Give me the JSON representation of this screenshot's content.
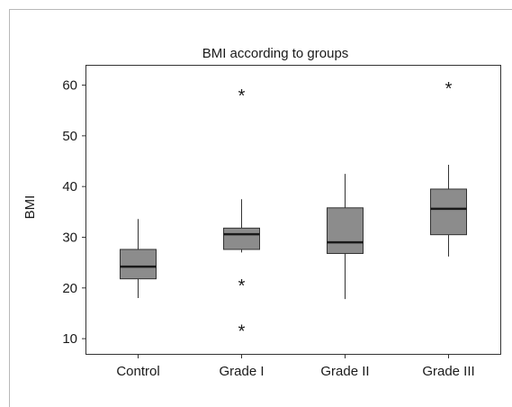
{
  "chart_data": {
    "type": "boxplot",
    "title": "BMI according to groups",
    "xlabel": "",
    "ylabel": "BMI",
    "ylim": [
      7,
      64
    ],
    "yticks": [
      10,
      20,
      30,
      40,
      50,
      60
    ],
    "categories": [
      "Control",
      "Grade I",
      "Grade II",
      "Grade III"
    ],
    "boxes": [
      {
        "category": "Control",
        "whisker_low": 18.0,
        "q1": 21.8,
        "median": 24.2,
        "q3": 27.6,
        "whisker_high": 33.6,
        "outliers": []
      },
      {
        "category": "Grade I",
        "whisker_low": 27.0,
        "q1": 27.6,
        "median": 30.6,
        "q3": 31.8,
        "whisker_high": 37.5,
        "outliers": [
          58.0,
          20.5,
          11.5
        ]
      },
      {
        "category": "Grade II",
        "whisker_low": 17.8,
        "q1": 26.8,
        "median": 29.0,
        "q3": 35.8,
        "whisker_high": 42.5,
        "outliers": []
      },
      {
        "category": "Grade III",
        "whisker_low": 26.2,
        "q1": 30.5,
        "median": 35.6,
        "q3": 39.5,
        "whisker_high": 44.3,
        "outliers": [
          59.4
        ]
      }
    ],
    "box_color": "#8c8c8c",
    "median_color": "#1a1a1a",
    "grid": false,
    "legend": "none"
  }
}
